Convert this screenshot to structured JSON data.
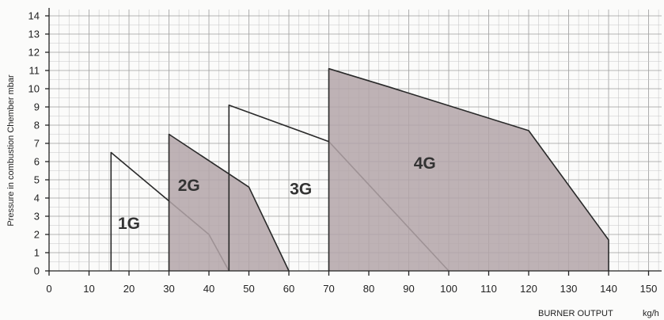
{
  "chart_data": {
    "type": "area",
    "xlabel": "BURNER OUTPUT",
    "xunit": "kg/h",
    "ylabel": "Pressure in combustion Chember mbar",
    "xlim": [
      0,
      150
    ],
    "ylim": [
      0,
      14
    ],
    "x_ticks": [
      "0",
      "10",
      "20",
      "30",
      "40",
      "50",
      "60",
      "70",
      "80",
      "90",
      "100",
      "110",
      "120",
      "130",
      "140",
      "150"
    ],
    "y_ticks": [
      "0",
      "1",
      "2",
      "3",
      "4",
      "5",
      "6",
      "7",
      "8",
      "9",
      "10",
      "11",
      "12",
      "13",
      "14"
    ],
    "grid": true,
    "series": [
      {
        "name": "1G",
        "filled": false,
        "label_at": [
          20,
          2.3
        ],
        "points": [
          [
            15.5,
            0
          ],
          [
            15.5,
            6.5
          ],
          [
            40,
            2
          ],
          [
            45,
            0
          ]
        ]
      },
      {
        "name": "2G",
        "filled": true,
        "label_at": [
          35,
          4.4
        ],
        "points": [
          [
            30,
            0
          ],
          [
            30,
            7.5
          ],
          [
            50,
            4.6
          ],
          [
            60,
            0
          ]
        ]
      },
      {
        "name": "3G",
        "filled": false,
        "label_at": [
          63,
          4.2
        ],
        "points": [
          [
            45,
            0
          ],
          [
            45,
            9.1
          ],
          [
            70,
            7.1
          ],
          [
            100,
            0
          ]
        ]
      },
      {
        "name": "4G",
        "filled": true,
        "label_at": [
          94,
          5.6
        ],
        "points": [
          [
            70,
            0
          ],
          [
            70,
            11.1
          ],
          [
            85,
            10.1
          ],
          [
            120,
            7.7
          ],
          [
            140,
            1.7
          ],
          [
            140,
            0
          ]
        ]
      }
    ]
  }
}
